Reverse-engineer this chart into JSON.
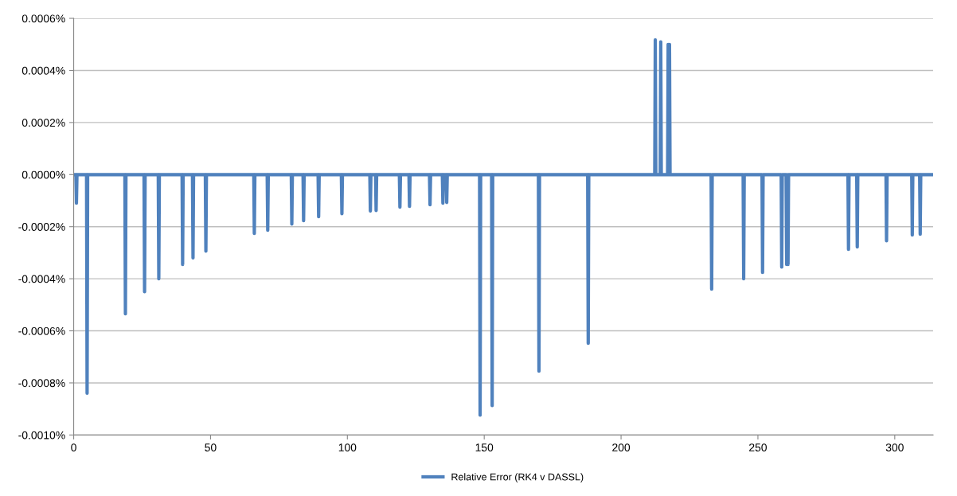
{
  "chart_data": {
    "type": "line",
    "xlim": [
      0,
      314
    ],
    "xticks": [
      0,
      50,
      100,
      150,
      200,
      250,
      300
    ],
    "ylim": [
      -0.001,
      0.0006
    ],
    "yticks": [
      {
        "value": -0.001,
        "label": "-0.0010%"
      },
      {
        "value": -0.0008,
        "label": "-0.0008%"
      },
      {
        "value": -0.0006,
        "label": "-0.0006%"
      },
      {
        "value": -0.0004,
        "label": "-0.0004%"
      },
      {
        "value": -0.0002,
        "label": "-0.0002%"
      },
      {
        "value": 0,
        "label": "0.0000%"
      },
      {
        "value": 0.0002,
        "label": "0.0002%"
      },
      {
        "value": 0.0004,
        "label": "0.0004%"
      },
      {
        "value": 0.0006,
        "label": "0.0006%"
      }
    ],
    "grid": "y",
    "legend": "bottom",
    "marker": "none",
    "line_style": "solid",
    "series": [
      {
        "name": "Relative Error (RK4 v DASSL)",
        "color": "#4f81bd",
        "x": [
          0,
          0.8,
          1,
          1.2,
          4.7,
          4.9,
          5.1,
          18.7,
          18.9,
          19.1,
          25.7,
          25.9,
          26.1,
          30.9,
          31.1,
          31.3,
          39.6,
          39.8,
          40,
          43.4,
          43.6,
          43.8,
          48.1,
          48.3,
          48.5,
          65.8,
          66,
          66.2,
          70.7,
          70.9,
          71.1,
          79.5,
          79.7,
          79.9,
          83.8,
          84,
          84.2,
          89.3,
          89.5,
          89.7,
          97.8,
          98,
          98.2,
          108.2,
          108.4,
          108.6,
          110.3,
          110.5,
          110.7,
          119,
          119.2,
          119.4,
          122.5,
          122.7,
          122.9,
          130,
          130.2,
          130.4,
          134.7,
          134.9,
          135.1,
          136.1,
          136.3,
          136.5,
          148.3,
          148.5,
          148.7,
          152.7,
          152.9,
          153.1,
          169.8,
          170,
          170.2,
          187.8,
          188,
          188.2,
          212.3,
          212.5,
          212.7,
          214.3,
          214.5,
          214.7,
          217,
          217.2,
          217.4,
          217.5,
          217.7,
          217.9,
          232.9,
          233.1,
          233.3,
          244.6,
          244.8,
          245,
          251.5,
          251.7,
          251.9,
          258.5,
          258.7,
          258.9,
          260.3,
          260.5,
          260.7,
          260.8,
          261,
          261.2,
          282.9,
          283.1,
          283.3,
          286.1,
          286.3,
          286.5,
          296.8,
          297,
          297.2,
          306.2,
          306.4,
          306.6,
          309.1,
          309.3,
          309.5,
          314
        ],
        "values": [
          0,
          0,
          -0.00011,
          0,
          0,
          -0.00084,
          0,
          0,
          -0.000535,
          0,
          0,
          -0.00045,
          0,
          0,
          -0.0004,
          0,
          0,
          -0.000345,
          0,
          0,
          -0.00032,
          0,
          0,
          -0.000294,
          0,
          0,
          -0.000226,
          0,
          0,
          -0.000214,
          0,
          0,
          -0.00019,
          0,
          0,
          -0.000177,
          0,
          0,
          -0.000162,
          0,
          0,
          -0.00015,
          0,
          0,
          -0.00014,
          0,
          0,
          -0.000138,
          0,
          0,
          -0.000125,
          0,
          0,
          -0.000122,
          0,
          0,
          -0.000116,
          0,
          0,
          -0.00011,
          0,
          0,
          -0.000107,
          0,
          0,
          -0.000924,
          0,
          0,
          -0.000887,
          0,
          0,
          -0.000755,
          0,
          0,
          -0.000648,
          0,
          0,
          0.000517,
          0,
          0,
          0.00051,
          0,
          0,
          0.0005,
          0,
          0,
          0.0005,
          0,
          0,
          -0.00044,
          0,
          0,
          -0.0004,
          0,
          0,
          -0.000376,
          0,
          0,
          -0.000355,
          0,
          0,
          -0.000345,
          0,
          0,
          -0.000345,
          0,
          0,
          -0.000287,
          0,
          0,
          -0.000278,
          0,
          0,
          -0.000254,
          0,
          0,
          -0.000232,
          0,
          0,
          -0.000229,
          0,
          0
        ]
      }
    ]
  }
}
